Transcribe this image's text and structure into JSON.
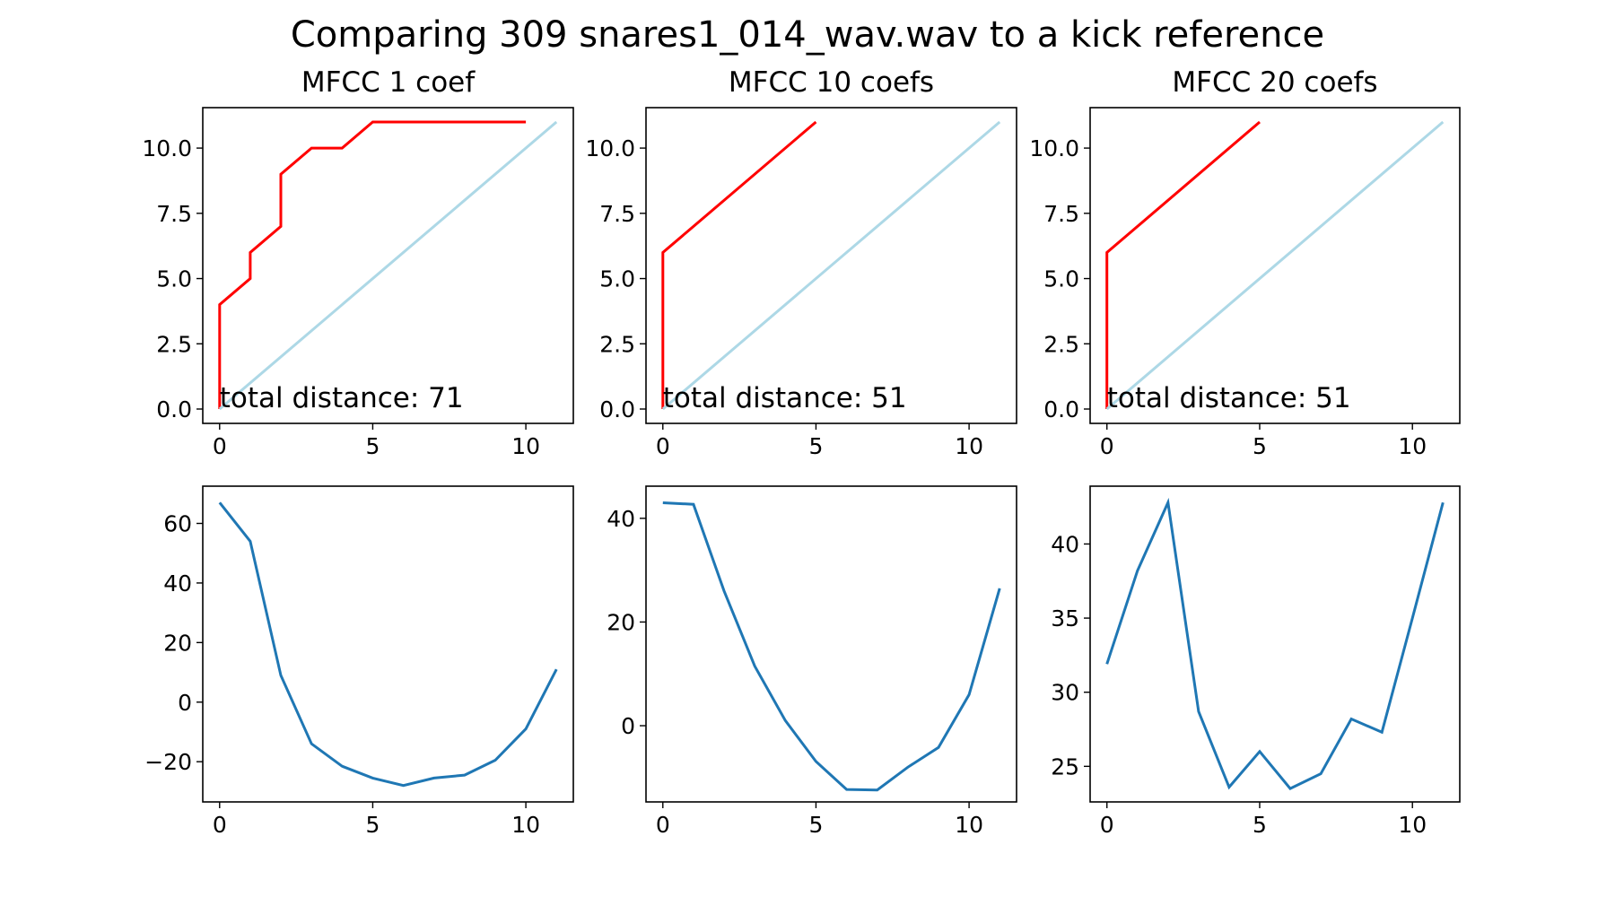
{
  "figure": {
    "title": "Comparing 309 snares1_014_wav.wav to a kick reference"
  },
  "colors": {
    "path": "#ff0000",
    "diagonal": "#add8e6",
    "series": "#1f77b4",
    "axes": "#000000",
    "background": "#ffffff"
  },
  "chart_data": [
    {
      "type": "line",
      "panel": "top-left",
      "title": "MFCC 1 coef",
      "xlabel": "",
      "ylabel": "",
      "xlim": [
        -0.55,
        11.55
      ],
      "ylim": [
        -0.55,
        11.55
      ],
      "xticks": [
        0,
        5,
        10
      ],
      "yticks": [
        0.0,
        2.5,
        5.0,
        7.5,
        10.0
      ],
      "series": [
        {
          "color_key": "path",
          "x": [
            0,
            0,
            1,
            1,
            2,
            2,
            3,
            4,
            5,
            6,
            7,
            8,
            9,
            10
          ],
          "y": [
            0,
            4,
            5,
            6,
            7,
            9,
            10,
            10,
            11,
            11,
            11,
            11,
            11,
            11
          ]
        },
        {
          "color_key": "diagonal",
          "x": [
            0,
            11
          ],
          "y": [
            0,
            11
          ]
        }
      ],
      "annotation": "total distance: 71"
    },
    {
      "type": "line",
      "panel": "top-middle",
      "title": "MFCC 10 coefs",
      "xlabel": "",
      "ylabel": "",
      "xlim": [
        -0.55,
        11.55
      ],
      "ylim": [
        -0.55,
        11.55
      ],
      "xticks": [
        0,
        5,
        10
      ],
      "yticks": [
        0.0,
        2.5,
        5.0,
        7.5,
        10.0
      ],
      "series": [
        {
          "color_key": "path",
          "x": [
            0,
            0,
            5
          ],
          "y": [
            0,
            6,
            11
          ]
        },
        {
          "color_key": "diagonal",
          "x": [
            0,
            11
          ],
          "y": [
            0,
            11
          ]
        }
      ],
      "annotation": "total distance: 51"
    },
    {
      "type": "line",
      "panel": "top-right",
      "title": "MFCC 20 coefs",
      "xlabel": "",
      "ylabel": "",
      "xlim": [
        -0.55,
        11.55
      ],
      "ylim": [
        -0.55,
        11.55
      ],
      "xticks": [
        0,
        5,
        10
      ],
      "yticks": [
        0.0,
        2.5,
        5.0,
        7.5,
        10.0
      ],
      "series": [
        {
          "color_key": "path",
          "x": [
            0,
            0,
            5
          ],
          "y": [
            0,
            6,
            11
          ]
        },
        {
          "color_key": "diagonal",
          "x": [
            0,
            11
          ],
          "y": [
            0,
            11
          ]
        }
      ],
      "annotation": "total distance: 51"
    },
    {
      "type": "line",
      "panel": "bottom-left",
      "title": "",
      "xlabel": "",
      "ylabel": "",
      "xlim": [
        -0.55,
        11.55
      ],
      "ylim": [
        -33.5,
        72.5
      ],
      "xticks": [
        0,
        5,
        10
      ],
      "yticks": [
        -20,
        0,
        20,
        40,
        60
      ],
      "series": [
        {
          "color_key": "series",
          "x": [
            0,
            1,
            2,
            3,
            4,
            5,
            6,
            7,
            8,
            9,
            10,
            11
          ],
          "y": [
            67,
            54,
            9,
            -14,
            -21.5,
            -25.5,
            -28,
            -25.5,
            -24.5,
            -19.5,
            -9,
            11
          ]
        }
      ]
    },
    {
      "type": "line",
      "panel": "bottom-middle",
      "title": "",
      "xlabel": "",
      "ylabel": "",
      "xlim": [
        -0.55,
        11.55
      ],
      "ylim": [
        -14.7,
        46.2
      ],
      "xticks": [
        0,
        5,
        10
      ],
      "yticks": [
        0,
        20,
        40
      ],
      "series": [
        {
          "color_key": "series",
          "x": [
            0,
            1,
            2,
            3,
            4,
            5,
            6,
            7,
            8,
            9,
            10,
            11
          ],
          "y": [
            43,
            42.7,
            26,
            11.5,
            1,
            -6.9,
            -12.3,
            -12.4,
            -8,
            -4.2,
            6,
            26.5
          ]
        }
      ]
    },
    {
      "type": "line",
      "panel": "bottom-right",
      "title": "",
      "xlabel": "",
      "ylabel": "",
      "xlim": [
        -0.55,
        11.55
      ],
      "ylim": [
        22.6,
        43.9
      ],
      "xticks": [
        0,
        5,
        10
      ],
      "yticks": [
        25,
        30,
        35,
        40
      ],
      "series": [
        {
          "color_key": "series",
          "x": [
            0,
            1,
            2,
            3,
            4,
            5,
            6,
            7,
            8,
            9,
            10,
            11
          ],
          "y": [
            31.9,
            38.2,
            42.8,
            28.7,
            23.6,
            26,
            23.5,
            24.5,
            28.2,
            27.3,
            35,
            42.8
          ]
        }
      ]
    }
  ]
}
